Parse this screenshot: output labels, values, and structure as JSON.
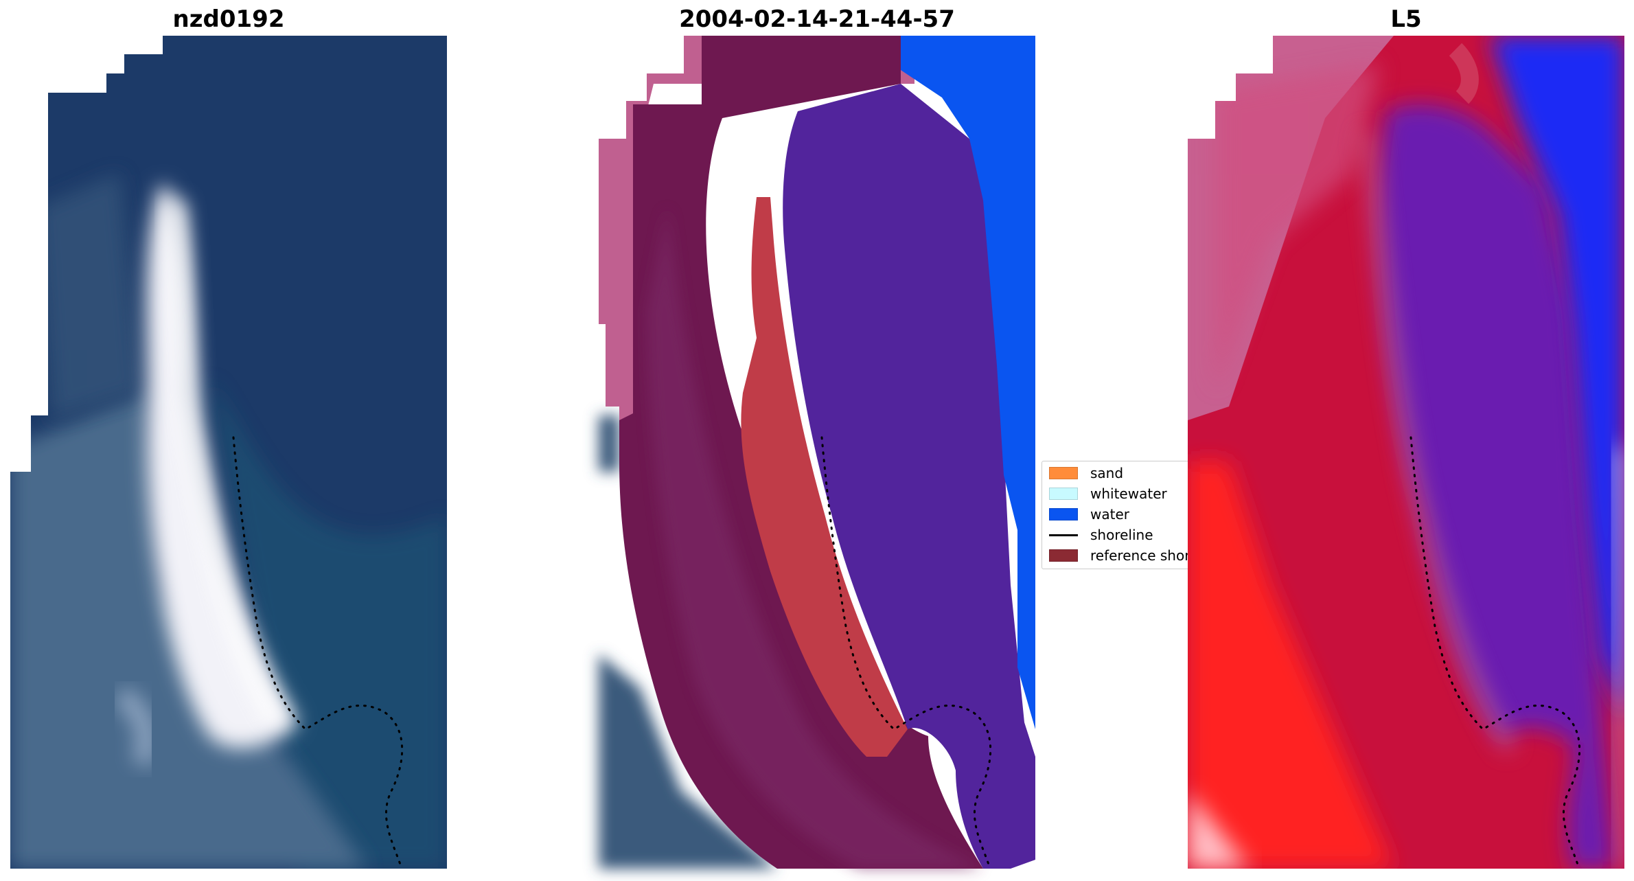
{
  "panels": [
    {
      "title": "nzd0192"
    },
    {
      "title": "2004-02-14-21-44-57"
    },
    {
      "title": "L5"
    }
  ],
  "legend": {
    "items": [
      {
        "label": "sand",
        "color": "#ff8c3a",
        "kind": "patch"
      },
      {
        "label": "whitewater",
        "color": "#c8faff",
        "kind": "patch"
      },
      {
        "label": "water",
        "color": "#0a55f0",
        "kind": "patch"
      },
      {
        "label": "shoreline",
        "color": "#000000",
        "kind": "line"
      },
      {
        "label": "reference shoreline",
        "color": "#8b2a33",
        "kind": "patch"
      }
    ]
  },
  "colors": {
    "ocean": "#1c3a68",
    "land": "#4a6a8c",
    "beach": "#f2f2f8",
    "overlay_land": "#6e1850",
    "overlay_land_light": "#c06090",
    "overlay_sand": "#c03c48",
    "overlay_water": "#52249c",
    "overlay_water_edge": "#0a55f0",
    "index_red": "#c8103c",
    "index_bright_red": "#ff2020",
    "index_pink": "#c86090",
    "index_purple": "#6a1eb0",
    "index_blue": "#1a2cf5"
  }
}
